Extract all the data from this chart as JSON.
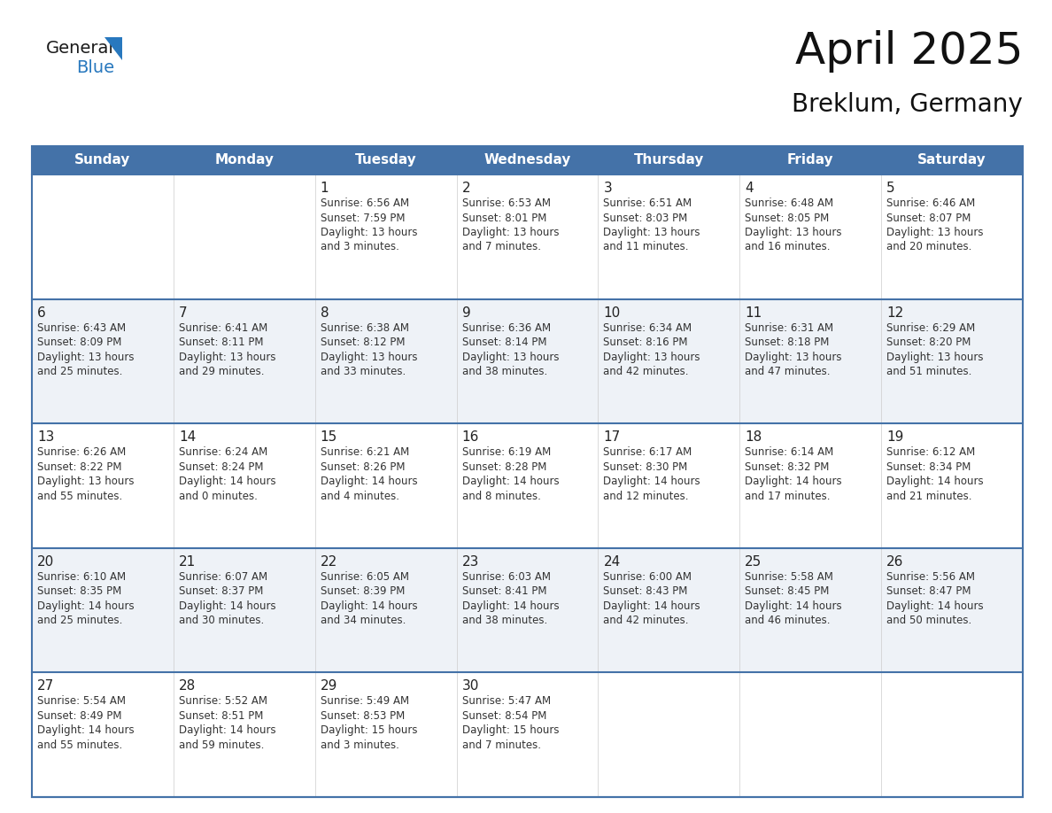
{
  "title": "April 2025",
  "subtitle": "Breklum, Germany",
  "header_color": "#4472A8",
  "header_text_color": "#FFFFFF",
  "cell_bg_even": "#FFFFFF",
  "cell_bg_odd": "#EEF2F7",
  "border_color": "#4472A8",
  "row_line_color": "#4472A8",
  "text_color": "#333333",
  "day_number_color": "#222222",
  "day_headers": [
    "Sunday",
    "Monday",
    "Tuesday",
    "Wednesday",
    "Thursday",
    "Friday",
    "Saturday"
  ],
  "weeks": [
    [
      {
        "day": "",
        "info": ""
      },
      {
        "day": "",
        "info": ""
      },
      {
        "day": "1",
        "info": "Sunrise: 6:56 AM\nSunset: 7:59 PM\nDaylight: 13 hours\nand 3 minutes."
      },
      {
        "day": "2",
        "info": "Sunrise: 6:53 AM\nSunset: 8:01 PM\nDaylight: 13 hours\nand 7 minutes."
      },
      {
        "day": "3",
        "info": "Sunrise: 6:51 AM\nSunset: 8:03 PM\nDaylight: 13 hours\nand 11 minutes."
      },
      {
        "day": "4",
        "info": "Sunrise: 6:48 AM\nSunset: 8:05 PM\nDaylight: 13 hours\nand 16 minutes."
      },
      {
        "day": "5",
        "info": "Sunrise: 6:46 AM\nSunset: 8:07 PM\nDaylight: 13 hours\nand 20 minutes."
      }
    ],
    [
      {
        "day": "6",
        "info": "Sunrise: 6:43 AM\nSunset: 8:09 PM\nDaylight: 13 hours\nand 25 minutes."
      },
      {
        "day": "7",
        "info": "Sunrise: 6:41 AM\nSunset: 8:11 PM\nDaylight: 13 hours\nand 29 minutes."
      },
      {
        "day": "8",
        "info": "Sunrise: 6:38 AM\nSunset: 8:12 PM\nDaylight: 13 hours\nand 33 minutes."
      },
      {
        "day": "9",
        "info": "Sunrise: 6:36 AM\nSunset: 8:14 PM\nDaylight: 13 hours\nand 38 minutes."
      },
      {
        "day": "10",
        "info": "Sunrise: 6:34 AM\nSunset: 8:16 PM\nDaylight: 13 hours\nand 42 minutes."
      },
      {
        "day": "11",
        "info": "Sunrise: 6:31 AM\nSunset: 8:18 PM\nDaylight: 13 hours\nand 47 minutes."
      },
      {
        "day": "12",
        "info": "Sunrise: 6:29 AM\nSunset: 8:20 PM\nDaylight: 13 hours\nand 51 minutes."
      }
    ],
    [
      {
        "day": "13",
        "info": "Sunrise: 6:26 AM\nSunset: 8:22 PM\nDaylight: 13 hours\nand 55 minutes."
      },
      {
        "day": "14",
        "info": "Sunrise: 6:24 AM\nSunset: 8:24 PM\nDaylight: 14 hours\nand 0 minutes."
      },
      {
        "day": "15",
        "info": "Sunrise: 6:21 AM\nSunset: 8:26 PM\nDaylight: 14 hours\nand 4 minutes."
      },
      {
        "day": "16",
        "info": "Sunrise: 6:19 AM\nSunset: 8:28 PM\nDaylight: 14 hours\nand 8 minutes."
      },
      {
        "day": "17",
        "info": "Sunrise: 6:17 AM\nSunset: 8:30 PM\nDaylight: 14 hours\nand 12 minutes."
      },
      {
        "day": "18",
        "info": "Sunrise: 6:14 AM\nSunset: 8:32 PM\nDaylight: 14 hours\nand 17 minutes."
      },
      {
        "day": "19",
        "info": "Sunrise: 6:12 AM\nSunset: 8:34 PM\nDaylight: 14 hours\nand 21 minutes."
      }
    ],
    [
      {
        "day": "20",
        "info": "Sunrise: 6:10 AM\nSunset: 8:35 PM\nDaylight: 14 hours\nand 25 minutes."
      },
      {
        "day": "21",
        "info": "Sunrise: 6:07 AM\nSunset: 8:37 PM\nDaylight: 14 hours\nand 30 minutes."
      },
      {
        "day": "22",
        "info": "Sunrise: 6:05 AM\nSunset: 8:39 PM\nDaylight: 14 hours\nand 34 minutes."
      },
      {
        "day": "23",
        "info": "Sunrise: 6:03 AM\nSunset: 8:41 PM\nDaylight: 14 hours\nand 38 minutes."
      },
      {
        "day": "24",
        "info": "Sunrise: 6:00 AM\nSunset: 8:43 PM\nDaylight: 14 hours\nand 42 minutes."
      },
      {
        "day": "25",
        "info": "Sunrise: 5:58 AM\nSunset: 8:45 PM\nDaylight: 14 hours\nand 46 minutes."
      },
      {
        "day": "26",
        "info": "Sunrise: 5:56 AM\nSunset: 8:47 PM\nDaylight: 14 hours\nand 50 minutes."
      }
    ],
    [
      {
        "day": "27",
        "info": "Sunrise: 5:54 AM\nSunset: 8:49 PM\nDaylight: 14 hours\nand 55 minutes."
      },
      {
        "day": "28",
        "info": "Sunrise: 5:52 AM\nSunset: 8:51 PM\nDaylight: 14 hours\nand 59 minutes."
      },
      {
        "day": "29",
        "info": "Sunrise: 5:49 AM\nSunset: 8:53 PM\nDaylight: 15 hours\nand 3 minutes."
      },
      {
        "day": "30",
        "info": "Sunrise: 5:47 AM\nSunset: 8:54 PM\nDaylight: 15 hours\nand 7 minutes."
      },
      {
        "day": "",
        "info": ""
      },
      {
        "day": "",
        "info": ""
      },
      {
        "day": "",
        "info": ""
      }
    ]
  ],
  "logo_general_color": "#1A1A1A",
  "logo_blue_color": "#2878BE",
  "logo_triangle_color": "#2878BE",
  "logo_fontsize": 14,
  "title_fontsize": 36,
  "subtitle_fontsize": 20,
  "header_fontsize": 11,
  "day_number_fontsize": 11,
  "info_fontsize": 8.5
}
